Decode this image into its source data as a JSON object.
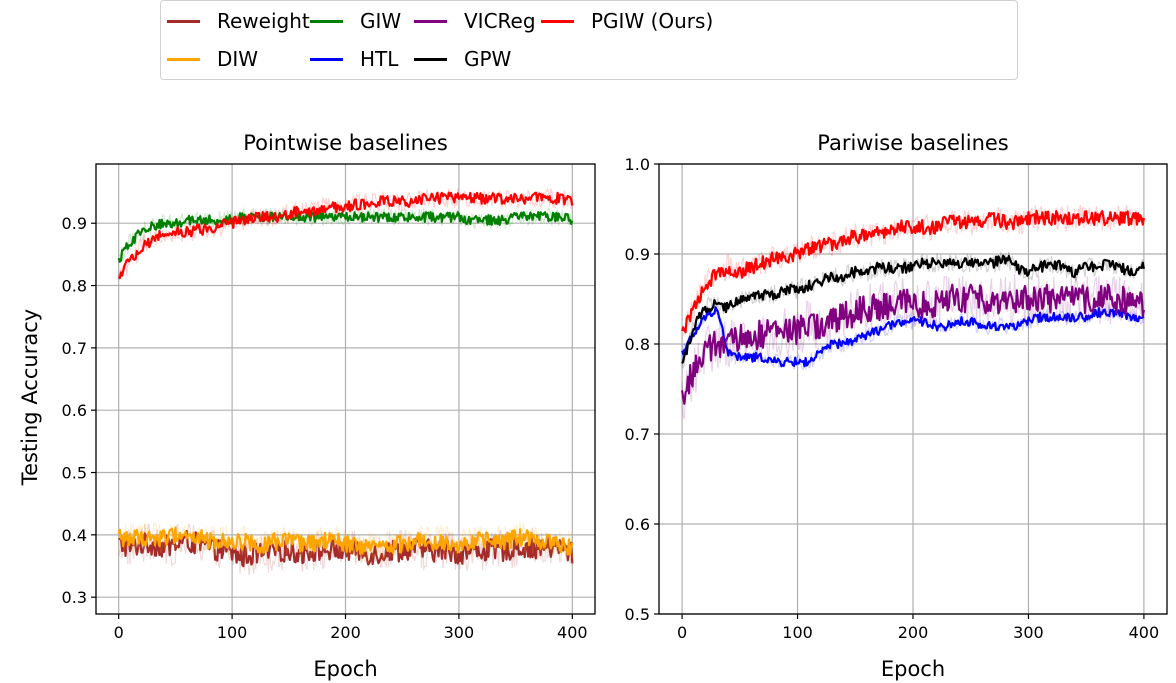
{
  "legend": {
    "items": [
      {
        "label": "Reweight",
        "color": "#a52a2a"
      },
      {
        "label": "DIW",
        "color": "#ffa500"
      },
      {
        "label": "GIW",
        "color": "#008000"
      },
      {
        "label": "HTL",
        "color": "#0000ff"
      },
      {
        "label": "VICReg",
        "color": "#800080"
      },
      {
        "label": "GPW",
        "color": "#000000"
      },
      {
        "label": "PGIW (Ours)",
        "color": "#ff0000"
      }
    ]
  },
  "chart_data": [
    {
      "type": "line",
      "title": "Pointwise baselines",
      "xlabel": "Epoch",
      "ylabel": "Testing Accuracy",
      "xlim": [
        -20,
        420
      ],
      "ylim": [
        0.273,
        0.995
      ],
      "xticks": [
        0,
        100,
        200,
        300,
        400
      ],
      "xtick_labels": [
        "0",
        "100",
        "200",
        "300",
        "400"
      ],
      "yticks": [
        0.3,
        0.4,
        0.5,
        0.6,
        0.7,
        0.8,
        0.9
      ],
      "ytick_labels": [
        "0.3",
        "0.4",
        "0.5",
        "0.6",
        "0.7",
        "0.8",
        "0.9"
      ],
      "grid": true,
      "x": [
        0,
        10,
        20,
        30,
        40,
        50,
        60,
        70,
        80,
        90,
        100,
        110,
        120,
        130,
        140,
        150,
        160,
        170,
        180,
        190,
        200,
        210,
        220,
        230,
        240,
        250,
        260,
        270,
        280,
        290,
        300,
        310,
        320,
        330,
        340,
        350,
        360,
        370,
        380,
        390,
        400
      ],
      "series": [
        {
          "name": "Reweight",
          "color": "#a52a2a",
          "noise": 0.018,
          "values": [
            0.385,
            0.38,
            0.385,
            0.385,
            0.38,
            0.385,
            0.39,
            0.385,
            0.38,
            0.375,
            0.37,
            0.365,
            0.37,
            0.37,
            0.375,
            0.375,
            0.37,
            0.375,
            0.375,
            0.375,
            0.375,
            0.375,
            0.37,
            0.37,
            0.375,
            0.375,
            0.38,
            0.375,
            0.375,
            0.375,
            0.37,
            0.375,
            0.375,
            0.375,
            0.375,
            0.38,
            0.38,
            0.38,
            0.38,
            0.38,
            0.37
          ]
        },
        {
          "name": "DIW",
          "color": "#ffa500",
          "noise": 0.014,
          "values": [
            0.395,
            0.395,
            0.395,
            0.395,
            0.395,
            0.4,
            0.4,
            0.395,
            0.39,
            0.39,
            0.39,
            0.39,
            0.385,
            0.385,
            0.39,
            0.39,
            0.385,
            0.385,
            0.39,
            0.39,
            0.385,
            0.38,
            0.38,
            0.38,
            0.385,
            0.385,
            0.39,
            0.39,
            0.39,
            0.39,
            0.385,
            0.39,
            0.39,
            0.39,
            0.39,
            0.395,
            0.395,
            0.39,
            0.39,
            0.385,
            0.38
          ]
        },
        {
          "name": "GIW",
          "color": "#008000",
          "noise": 0.008,
          "values": [
            0.84,
            0.87,
            0.885,
            0.895,
            0.9,
            0.9,
            0.905,
            0.905,
            0.905,
            0.905,
            0.905,
            0.91,
            0.91,
            0.91,
            0.91,
            0.91,
            0.91,
            0.91,
            0.91,
            0.91,
            0.91,
            0.91,
            0.91,
            0.91,
            0.91,
            0.91,
            0.91,
            0.91,
            0.91,
            0.91,
            0.91,
            0.905,
            0.905,
            0.905,
            0.905,
            0.91,
            0.91,
            0.91,
            0.91,
            0.91,
            0.905
          ]
        },
        {
          "name": "PGIW (Ours)",
          "color": "#ff0000",
          "noise": 0.009,
          "values": [
            0.81,
            0.84,
            0.86,
            0.875,
            0.885,
            0.885,
            0.885,
            0.89,
            0.89,
            0.895,
            0.9,
            0.905,
            0.91,
            0.91,
            0.91,
            0.915,
            0.92,
            0.92,
            0.925,
            0.925,
            0.925,
            0.93,
            0.93,
            0.935,
            0.935,
            0.935,
            0.935,
            0.94,
            0.94,
            0.94,
            0.94,
            0.94,
            0.94,
            0.94,
            0.94,
            0.94,
            0.94,
            0.94,
            0.94,
            0.94,
            0.935
          ]
        }
      ]
    },
    {
      "type": "line",
      "title": "Pariwise baselines",
      "xlabel": "Epoch",
      "ylabel": "",
      "xlim": [
        -20,
        420
      ],
      "ylim": [
        0.5,
        1.0
      ],
      "xticks": [
        0,
        100,
        200,
        300,
        400
      ],
      "xtick_labels": [
        "0",
        "100",
        "200",
        "300",
        "400"
      ],
      "yticks": [
        0.5,
        0.6,
        0.7,
        0.8,
        0.9,
        1.0
      ],
      "ytick_labels": [
        "0.5",
        "0.6",
        "0.7",
        "0.8",
        "0.9",
        "1.0"
      ],
      "grid": true,
      "x": [
        0,
        10,
        20,
        30,
        40,
        50,
        60,
        70,
        80,
        90,
        100,
        110,
        120,
        130,
        140,
        150,
        160,
        170,
        180,
        190,
        200,
        210,
        220,
        230,
        240,
        250,
        260,
        270,
        280,
        290,
        300,
        310,
        320,
        330,
        340,
        350,
        360,
        370,
        380,
        390,
        400
      ],
      "series": [
        {
          "name": "HTL",
          "color": "#0000ff",
          "noise": 0.005,
          "values": [
            0.79,
            0.81,
            0.83,
            0.84,
            0.79,
            0.785,
            0.785,
            0.785,
            0.78,
            0.78,
            0.78,
            0.78,
            0.79,
            0.8,
            0.8,
            0.805,
            0.81,
            0.815,
            0.82,
            0.825,
            0.825,
            0.825,
            0.82,
            0.82,
            0.825,
            0.825,
            0.82,
            0.82,
            0.82,
            0.82,
            0.825,
            0.83,
            0.83,
            0.83,
            0.83,
            0.83,
            0.835,
            0.835,
            0.835,
            0.83,
            0.828
          ]
        },
        {
          "name": "VICReg",
          "color": "#800080",
          "noise": 0.016,
          "values": [
            0.74,
            0.77,
            0.79,
            0.8,
            0.8,
            0.805,
            0.81,
            0.81,
            0.815,
            0.815,
            0.815,
            0.82,
            0.82,
            0.825,
            0.83,
            0.835,
            0.84,
            0.84,
            0.84,
            0.845,
            0.845,
            0.845,
            0.845,
            0.85,
            0.85,
            0.85,
            0.85,
            0.85,
            0.85,
            0.85,
            0.85,
            0.85,
            0.85,
            0.85,
            0.85,
            0.85,
            0.85,
            0.85,
            0.85,
            0.845,
            0.84
          ]
        },
        {
          "name": "GPW",
          "color": "#000000",
          "noise": 0.006,
          "values": [
            0.775,
            0.82,
            0.84,
            0.845,
            0.84,
            0.85,
            0.855,
            0.855,
            0.855,
            0.86,
            0.86,
            0.865,
            0.87,
            0.875,
            0.875,
            0.88,
            0.88,
            0.885,
            0.885,
            0.885,
            0.885,
            0.89,
            0.89,
            0.89,
            0.89,
            0.89,
            0.89,
            0.89,
            0.895,
            0.885,
            0.88,
            0.885,
            0.89,
            0.885,
            0.88,
            0.885,
            0.885,
            0.89,
            0.885,
            0.88,
            0.888
          ]
        },
        {
          "name": "PGIW (Ours)",
          "color": "#ff0000",
          "noise": 0.008,
          "values": [
            0.81,
            0.84,
            0.865,
            0.88,
            0.885,
            0.88,
            0.885,
            0.89,
            0.895,
            0.895,
            0.9,
            0.905,
            0.91,
            0.91,
            0.915,
            0.92,
            0.92,
            0.925,
            0.925,
            0.93,
            0.93,
            0.93,
            0.93,
            0.935,
            0.935,
            0.935,
            0.935,
            0.94,
            0.935,
            0.935,
            0.94,
            0.94,
            0.94,
            0.94,
            0.94,
            0.94,
            0.94,
            0.94,
            0.94,
            0.94,
            0.935
          ]
        }
      ]
    }
  ]
}
